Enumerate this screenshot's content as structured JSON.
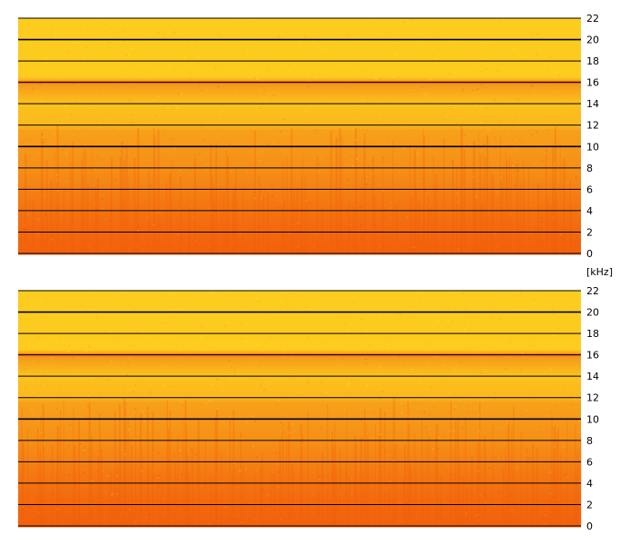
{
  "unit_label": "[kHz]",
  "colors": {
    "background": "#ffffff",
    "grid": "#000000",
    "low_band": "#f25a0a",
    "mid_band": "#f7a01a",
    "high_band": "#ffd81f",
    "line_16k": "#e8701a"
  },
  "chart_data": [
    {
      "type": "heatmap",
      "name": "channel-1-spectrogram",
      "ylabel": "[kHz]",
      "ylim": [
        0,
        22
      ],
      "y_ticks": [
        0,
        2,
        4,
        6,
        8,
        10,
        12,
        14,
        16,
        18,
        20,
        22
      ],
      "grid": true,
      "colormap": "red-orange-yellow (red = high energy)",
      "energy_profile": [
        {
          "freq_khz": 0,
          "level": 0.95
        },
        {
          "freq_khz": 2,
          "level": 0.9
        },
        {
          "freq_khz": 4,
          "level": 0.82
        },
        {
          "freq_khz": 6,
          "level": 0.72
        },
        {
          "freq_khz": 8,
          "level": 0.62
        },
        {
          "freq_khz": 10,
          "level": 0.55
        },
        {
          "freq_khz": 11.5,
          "level": 0.5
        },
        {
          "freq_khz": 12,
          "level": 0.28
        },
        {
          "freq_khz": 14,
          "level": 0.2
        },
        {
          "freq_khz": 16,
          "level": 0.6
        },
        {
          "freq_khz": 16.5,
          "level": 0.1
        },
        {
          "freq_khz": 18,
          "level": 0.12
        },
        {
          "freq_khz": 22,
          "level": 0.1
        }
      ]
    },
    {
      "type": "heatmap",
      "name": "channel-2-spectrogram",
      "ylabel": "[kHz]",
      "ylim": [
        0,
        22
      ],
      "y_ticks": [
        0,
        2,
        4,
        6,
        8,
        10,
        12,
        14,
        16,
        18,
        20,
        22
      ],
      "grid": true,
      "colormap": "red-orange-yellow (red = high energy)",
      "energy_profile": [
        {
          "freq_khz": 0,
          "level": 0.95
        },
        {
          "freq_khz": 2,
          "level": 0.9
        },
        {
          "freq_khz": 4,
          "level": 0.82
        },
        {
          "freq_khz": 6,
          "level": 0.72
        },
        {
          "freq_khz": 8,
          "level": 0.62
        },
        {
          "freq_khz": 10,
          "level": 0.55
        },
        {
          "freq_khz": 11.5,
          "level": 0.5
        },
        {
          "freq_khz": 12,
          "level": 0.28
        },
        {
          "freq_khz": 14,
          "level": 0.2
        },
        {
          "freq_khz": 16,
          "level": 0.6
        },
        {
          "freq_khz": 16.5,
          "level": 0.1
        },
        {
          "freq_khz": 18,
          "level": 0.12
        },
        {
          "freq_khz": 22,
          "level": 0.1
        }
      ]
    }
  ]
}
